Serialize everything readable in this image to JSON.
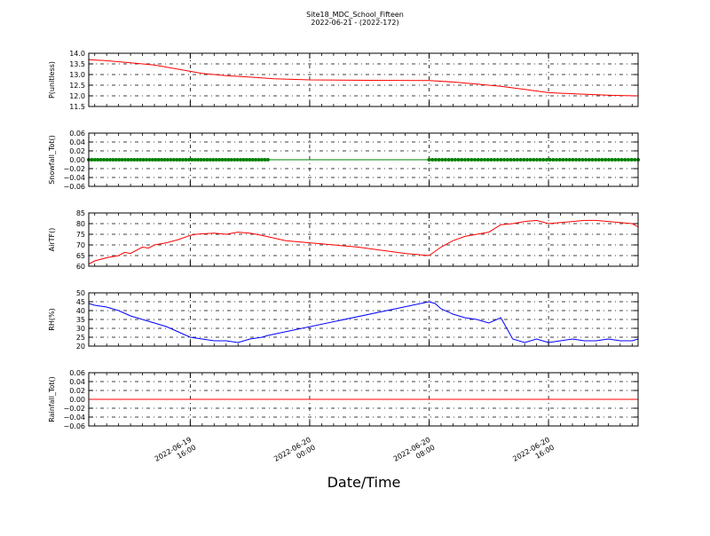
{
  "figure": {
    "title": "Site18_MDC_School_Fifteen",
    "subtitle": "2022-06-21 - (2022-172)",
    "xlabel": "Date/Time"
  },
  "chart_data": [
    {
      "type": "line",
      "ylabel": "P(unitless)",
      "ylim": [
        11.5,
        14.0
      ],
      "yticks": [
        11.5,
        12.0,
        12.5,
        13.0,
        13.5,
        14.0
      ],
      "ytick_labels": [
        "11.5",
        "12.0",
        "12.5",
        "13.0",
        "13.5",
        "14.0"
      ],
      "xlim": [
        -8.5,
        37.5
      ],
      "xticks": [
        {
          "pos": 0,
          "date": "2022-06-19",
          "time": "16:00"
        },
        {
          "pos": 10,
          "date": "2022-06-20",
          "time": "00:00"
        },
        {
          "pos": 20,
          "date": "2022-06-20",
          "time": "08:00"
        },
        {
          "pos": 30,
          "date": "2022-06-20",
          "time": "16:00"
        }
      ],
      "grid": true,
      "color": "#ff0000",
      "marker": "none",
      "x": [
        -8.5,
        -7,
        -5,
        -3,
        -1,
        1,
        3,
        5,
        7,
        10,
        15,
        20,
        22,
        24,
        26,
        28,
        30,
        32,
        34,
        35.5,
        37.5
      ],
      "y": [
        13.7,
        13.65,
        13.55,
        13.45,
        13.25,
        13.05,
        12.95,
        12.88,
        12.8,
        12.75,
        12.73,
        12.72,
        12.65,
        12.55,
        12.45,
        12.3,
        12.15,
        12.1,
        12.05,
        12.02,
        12.0
      ]
    },
    {
      "type": "line",
      "ylabel": "Snowfall_Tot()",
      "ylim": [
        -0.06,
        0.06
      ],
      "yticks": [
        -0.06,
        -0.04,
        -0.02,
        0.0,
        0.02,
        0.04,
        0.06
      ],
      "ytick_labels": [
        "−0.06",
        "−0.04",
        "−0.02",
        "0.00",
        "0.02",
        "0.04",
        "0.06"
      ],
      "xlim": [
        -8.5,
        37.5
      ],
      "grid": true,
      "color": "#008000",
      "marker": "dot",
      "x": [
        -8.5,
        37.5
      ],
      "y": [
        0,
        0
      ],
      "marker_segments": [
        [
          -8.5,
          6.5
        ],
        [
          20,
          37.5
        ]
      ],
      "marker_count": [
        60,
        65
      ]
    },
    {
      "type": "line",
      "ylabel": "AirTF()",
      "ylim": [
        60,
        85
      ],
      "yticks": [
        60,
        65,
        70,
        75,
        80,
        85
      ],
      "ytick_labels": [
        "60",
        "65",
        "70",
        "75",
        "80",
        "85"
      ],
      "xlim": [
        -8.5,
        37.5
      ],
      "grid": true,
      "color": "#ff0000",
      "marker": "none",
      "x": [
        -8.5,
        -8,
        -7,
        -6,
        -5.5,
        -5,
        -4,
        -3.5,
        -3,
        -2,
        -1,
        0,
        0.5,
        1,
        2,
        3,
        4,
        5,
        6,
        8,
        10,
        14,
        18,
        20,
        21,
        22,
        23,
        24,
        25,
        26,
        27,
        28,
        29,
        30,
        31,
        32,
        33,
        34,
        35,
        36,
        37,
        37.5
      ],
      "y": [
        61,
        62.5,
        64,
        65,
        66.5,
        66,
        69,
        68.5,
        70,
        71,
        72.5,
        74.5,
        75,
        75.2,
        75.5,
        75,
        76,
        75.5,
        74.5,
        72,
        71,
        69,
        66,
        65,
        69,
        72,
        74,
        75,
        76,
        79.5,
        80,
        81,
        81.5,
        80,
        80.5,
        81,
        81.5,
        81.5,
        81,
        80.5,
        80,
        78.5
      ]
    },
    {
      "type": "line",
      "ylabel": "RH(%)",
      "ylim": [
        20,
        50
      ],
      "yticks": [
        20,
        25,
        30,
        35,
        40,
        45,
        50
      ],
      "ytick_labels": [
        "20",
        "25",
        "30",
        "35",
        "40",
        "45",
        "50"
      ],
      "xlim": [
        -8.5,
        37.5
      ],
      "grid": true,
      "color": "#0000ff",
      "marker": "none",
      "x": [
        -8.5,
        -8,
        -7,
        -6,
        -5,
        -4,
        -3,
        -2,
        -1,
        0,
        1,
        2,
        3,
        4,
        5,
        6,
        6.5,
        20,
        20.5,
        21,
        22,
        23,
        24,
        25,
        26,
        27,
        28,
        29,
        30,
        31,
        32,
        33,
        34,
        35,
        36,
        37,
        37.5
      ],
      "y": [
        44,
        43,
        42,
        40,
        37,
        35,
        33,
        31,
        28,
        25,
        24,
        23,
        23,
        22,
        24,
        25,
        26,
        45,
        44,
        41,
        38,
        36,
        35,
        33,
        36,
        24,
        22,
        24,
        22,
        23,
        24,
        23,
        23,
        24,
        23,
        23,
        24
      ]
    },
    {
      "type": "line",
      "ylabel": "Rainfall_Tot()",
      "ylim": [
        -0.06,
        0.06
      ],
      "yticks": [
        -0.06,
        -0.04,
        -0.02,
        0.0,
        0.02,
        0.04,
        0.06
      ],
      "ytick_labels": [
        "−0.06",
        "−0.04",
        "−0.02",
        "0.00",
        "0.02",
        "0.04",
        "0.06"
      ],
      "xlim": [
        -8.5,
        37.5
      ],
      "grid": true,
      "color": "#ff0000",
      "marker": "none",
      "x": [
        -8.5,
        37.5
      ],
      "y": [
        0,
        0
      ]
    }
  ]
}
